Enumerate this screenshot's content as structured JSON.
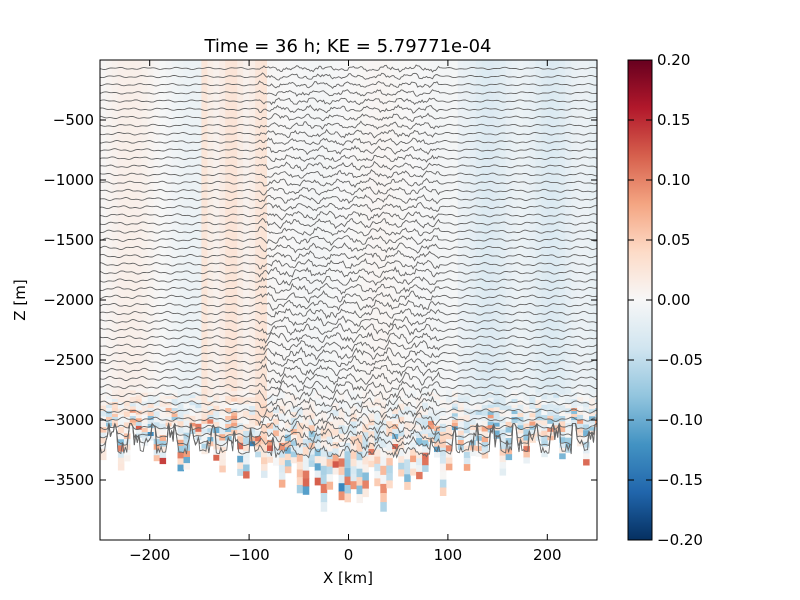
{
  "chart_data": {
    "type": "heatmap",
    "title": "Time = 36 h; KE = 5.79771e-04",
    "xlabel": "X [km]",
    "ylabel": "Z [m]",
    "xlim": [
      -250,
      250
    ],
    "ylim": [
      -4000,
      0
    ],
    "xticks": [
      -200,
      -100,
      0,
      100,
      200
    ],
    "xtick_labels": [
      "−200",
      "−100",
      "0",
      "100",
      "200"
    ],
    "yticks": [
      -3500,
      -3000,
      -2500,
      -2000,
      -1500,
      -1000,
      -500
    ],
    "ytick_labels": [
      "−3500",
      "−3000",
      "−2500",
      "−2000",
      "−1500",
      "−1000",
      "−500"
    ],
    "colorbar": {
      "vmin": -0.2,
      "vmax": 0.2,
      "ticks": [
        0.2,
        0.15,
        0.1,
        0.05,
        0.0,
        -0.05,
        -0.1,
        -0.15,
        -0.2
      ],
      "tick_labels": [
        "0.20",
        "0.15",
        "0.10",
        "0.05",
        "0.00",
        "−0.05",
        "−0.10",
        "−0.15",
        "−0.20"
      ],
      "colormap": "RdBu_r",
      "colors": [
        "#053061",
        "#2166ac",
        "#4393c3",
        "#92c5de",
        "#d1e5f0",
        "#f7f7f7",
        "#fddbc7",
        "#f4a582",
        "#d6604d",
        "#b2182b",
        "#67001f"
      ]
    },
    "field_description": "velocity field with isopycnal contours over rough seafloor",
    "isopycnal_color": "#666666",
    "contour_count": 48
  }
}
